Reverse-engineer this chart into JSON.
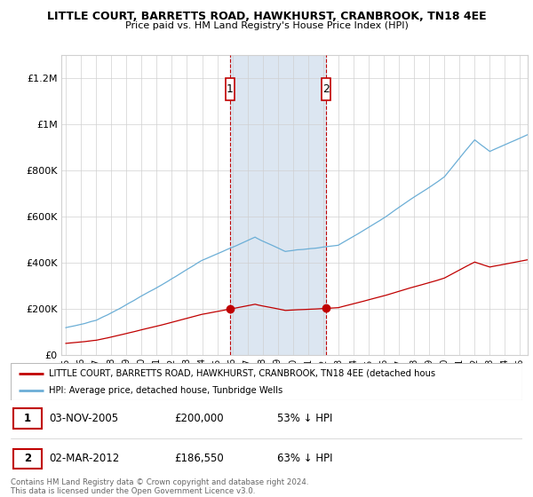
{
  "title": "LITTLE COURT, BARRETTS ROAD, HAWKHURST, CRANBROOK, TN18 4EE",
  "subtitle": "Price paid vs. HM Land Registry's House Price Index (HPI)",
  "hpi_color": "#6baed6",
  "price_color": "#c00000",
  "highlight_color": "#dce6f1",
  "sale1_x": 2005.84,
  "sale1_price": 200000,
  "sale2_x": 2012.17,
  "sale2_price": 186550,
  "ylim_max": 1300000,
  "yticks": [
    0,
    200000,
    400000,
    600000,
    800000,
    1000000,
    1200000
  ],
  "ytick_labels": [
    "£0",
    "£200K",
    "£400K",
    "£600K",
    "£800K",
    "£1M",
    "£1.2M"
  ],
  "legend1_text": "LITTLE COURT, BARRETTS ROAD, HAWKHURST, CRANBROOK, TN18 4EE (detached hous",
  "legend2_text": "HPI: Average price, detached house, Tunbridge Wells",
  "footer1": "Contains HM Land Registry data © Crown copyright and database right 2024.",
  "footer2": "This data is licensed under the Open Government Licence v3.0.",
  "table_row1": [
    "1",
    "03-NOV-2005",
    "£200,000",
    "53% ↓ HPI"
  ],
  "table_row2": [
    "2",
    "02-MAR-2012",
    "£186,550",
    "63% ↓ HPI"
  ]
}
